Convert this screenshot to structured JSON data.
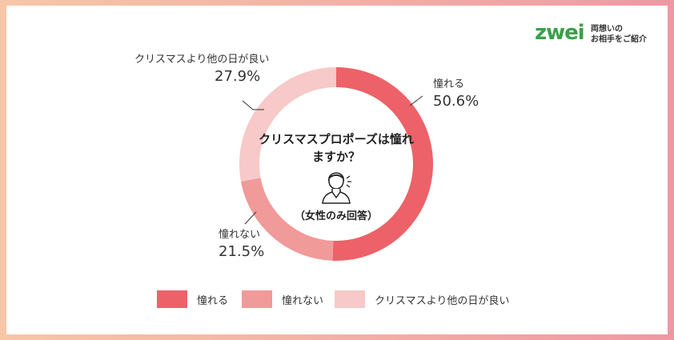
{
  "logo": {
    "wordmark": "ZWEI",
    "tagline_line1": "両想いの",
    "tagline_line2": "お相手をご紹介"
  },
  "chart_data": {
    "type": "pie",
    "title": "クリスマスプロポーズは憧れますか？",
    "subtitle": "（女性のみ回答）",
    "categories": [
      "憧れる",
      "憧れない",
      "クリスマスより他の日が良い"
    ],
    "values": [
      50.6,
      21.5,
      27.9
    ],
    "value_labels": [
      "50.6%",
      "21.5%",
      "27.9%"
    ],
    "colors": [
      "#ec6268",
      "#f09a99",
      "#f7c9c8"
    ],
    "legend_position": "bottom",
    "donut": true
  },
  "icons": {
    "center": "woman-person-icon"
  }
}
